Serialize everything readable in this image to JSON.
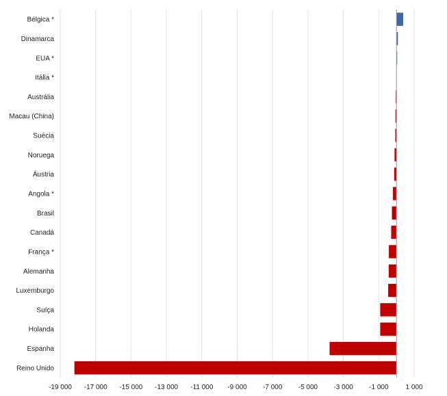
{
  "chart_data": {
    "type": "bar",
    "orientation": "horizontal",
    "title": "",
    "xlabel": "",
    "ylabel": "",
    "categories": [
      "Bélgica *",
      "Dinamarca",
      "EUA *",
      "Itália *",
      "Austrália",
      "Macau (China)",
      "Suécia",
      "Noruega",
      "Áustria",
      "Angola *",
      "Brasil",
      "Canadá",
      "França *",
      "Alemanha",
      "Luxemburgo",
      "Suíça",
      "Holanda",
      "Espanha",
      "Reino Unido"
    ],
    "values": [
      380,
      80,
      40,
      0,
      -40,
      -60,
      -70,
      -110,
      -130,
      -200,
      -260,
      -300,
      -430,
      -440,
      -470,
      -920,
      -920,
      -3780,
      -18200
    ],
    "xlim": [
      -19000,
      1500
    ],
    "xticks": [
      -19000,
      -17000,
      -15000,
      -13000,
      -11000,
      -9000,
      -7000,
      -5000,
      -3000,
      -1000,
      1000
    ],
    "xtick_labels": [
      "-19 000",
      "-17 000",
      "-15 000",
      "-13 000",
      "-11 000",
      "-9 000",
      "-7 000",
      "-5 000",
      "-3 000",
      "-1 000",
      "1 000"
    ],
    "grid": true,
    "legend": "none",
    "colors": {
      "positive": "#3f6aa0",
      "negative": "#c00000"
    }
  }
}
